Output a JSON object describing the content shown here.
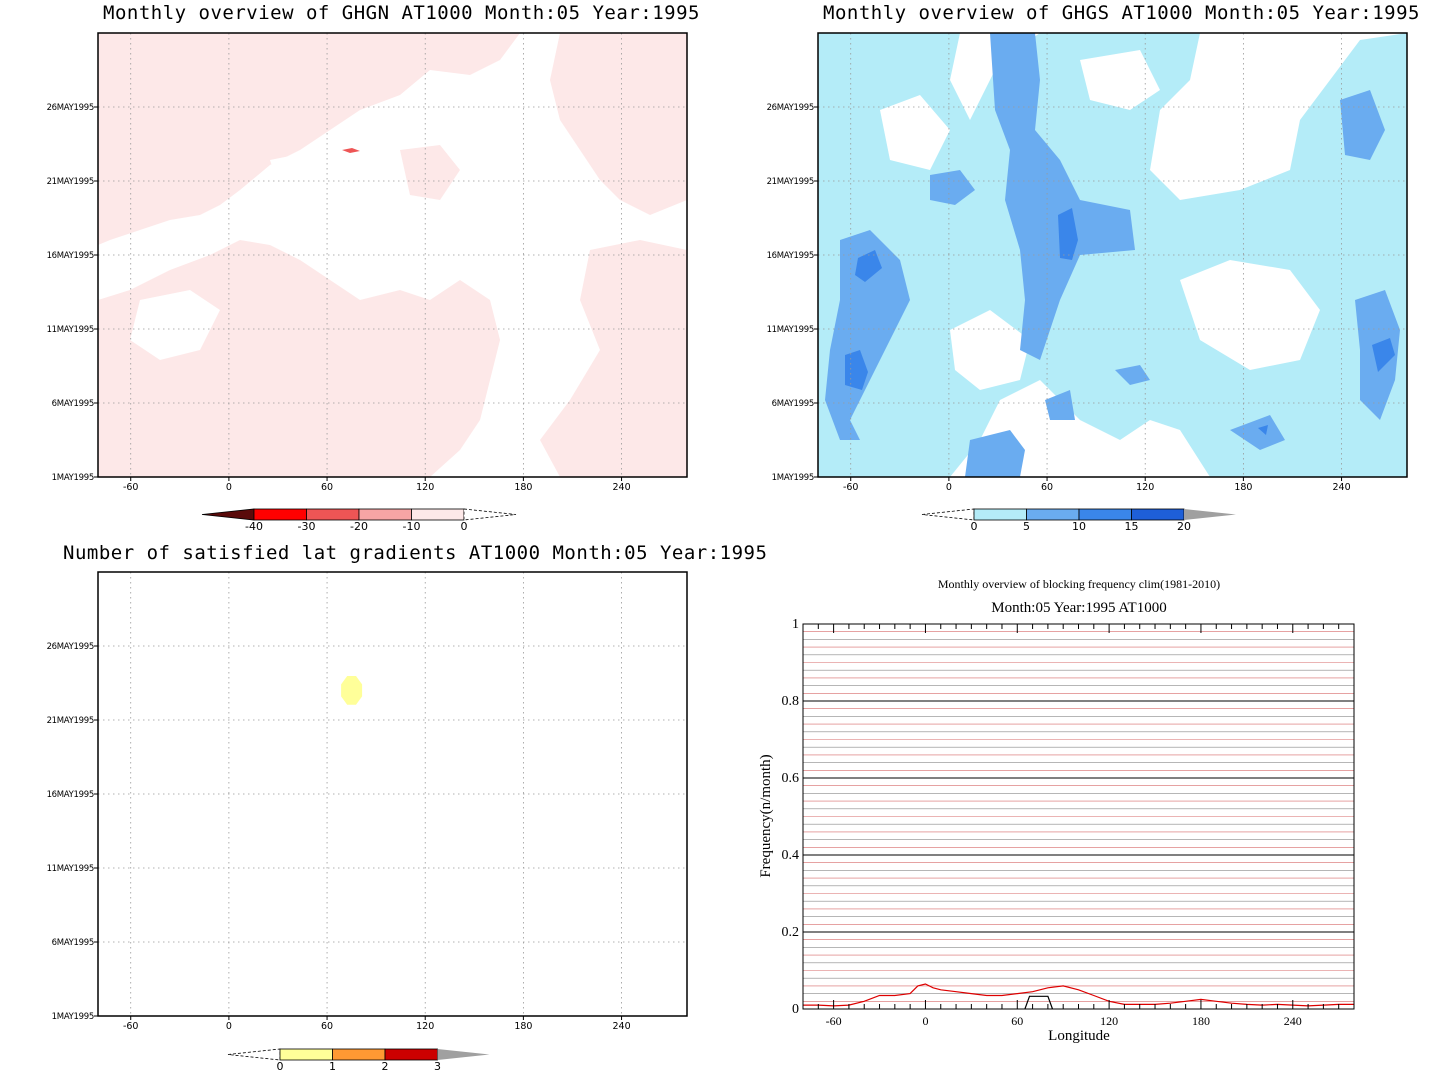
{
  "chart_data": [
    {
      "type": "heatmap",
      "title": "Monthly overview of GHGN AT1000 Month:05 Year:1995",
      "x_ticks": [
        "-60",
        "0",
        "60",
        "120",
        "180",
        "240"
      ],
      "x_tick_values": [
        -60,
        0,
        60,
        120,
        180,
        240
      ],
      "xlim": [
        -80,
        280
      ],
      "y_ticks": [
        "1MAY1995",
        "6MAY1995",
        "11MAY1995",
        "16MAY1995",
        "21MAY1995",
        "26MAY1995"
      ],
      "y_tick_values": [
        1,
        6,
        11,
        16,
        21,
        26
      ],
      "ylim": [
        1,
        31
      ],
      "grid": true,
      "legend": {
        "labels": [
          "-40",
          "-30",
          "-20",
          "-10",
          "0"
        ],
        "colors": [
          "#5a0a0a",
          "#ff0000",
          "#ee5555",
          "#f7a5a5",
          "#fde8e8",
          "#ffffff"
        ]
      },
      "fill_color": "#fde8e8"
    },
    {
      "type": "heatmap",
      "title": "Monthly overview of GHGS AT1000 Month:05 Year:1995",
      "x_ticks": [
        "-60",
        "0",
        "60",
        "120",
        "180",
        "240"
      ],
      "x_tick_values": [
        -60,
        0,
        60,
        120,
        180,
        240
      ],
      "xlim": [
        -80,
        280
      ],
      "y_ticks": [
        "1MAY1995",
        "6MAY1995",
        "11MAY1995",
        "16MAY1995",
        "21MAY1995",
        "26MAY1995"
      ],
      "y_tick_values": [
        1,
        6,
        11,
        16,
        21,
        26
      ],
      "ylim": [
        1,
        31
      ],
      "grid": true,
      "legend": {
        "labels": [
          "0",
          "5",
          "10",
          "15",
          "20"
        ],
        "colors": [
          "#ffffff",
          "#b4ecf8",
          "#6aacf0",
          "#3a86ea",
          "#1e5fd8",
          "#a0a0a0"
        ]
      },
      "fill_colors": [
        "#b4ecf8",
        "#6aacf0",
        "#3a86ea",
        "#1e5fd8"
      ]
    },
    {
      "type": "heatmap",
      "title": "Number of satisfied lat gradients AT1000 Month:05 Year:1995",
      "x_ticks": [
        "-60",
        "0",
        "60",
        "120",
        "180",
        "240"
      ],
      "x_tick_values": [
        -60,
        0,
        60,
        120,
        180,
        240
      ],
      "xlim": [
        -80,
        280
      ],
      "y_ticks": [
        "1MAY1995",
        "6MAY1995",
        "11MAY1995",
        "16MAY1995",
        "21MAY1995",
        "26MAY1995"
      ],
      "y_tick_values": [
        1,
        6,
        11,
        16,
        21,
        26
      ],
      "ylim": [
        1,
        31
      ],
      "grid": true,
      "legend": {
        "labels": [
          "0",
          "1",
          "2",
          "3"
        ],
        "colors": [
          "#ffffff",
          "#ffff99",
          "#ff9933",
          "#cc0000",
          "#a0a0a0"
        ]
      },
      "blob": {
        "lon": 75,
        "day": 23,
        "value": 1
      }
    },
    {
      "type": "line",
      "title": "Monthly overview of blocking frequency clim(1981-2010)",
      "subtitle": "Month:05 Year:1995  AT1000",
      "xlabel": "Longitude",
      "ylabel": "Frequency(n/month)",
      "xlim": [
        -80,
        280
      ],
      "ylim": [
        0,
        1
      ],
      "x_ticks": [
        "-60",
        "0",
        "60",
        "120",
        "180",
        "240"
      ],
      "x_tick_values": [
        -60,
        0,
        60,
        120,
        180,
        240
      ],
      "y_ticks": [
        "0",
        "0.2",
        "0.4",
        "0.6",
        "0.8",
        "1"
      ],
      "y_tick_values": [
        0,
        0.2,
        0.4,
        0.6,
        0.8,
        1
      ],
      "grid": true,
      "series": [
        {
          "color": "#dd0000",
          "x": [
            -80,
            -70,
            -60,
            -50,
            -40,
            -30,
            -20,
            -10,
            -5,
            0,
            5,
            10,
            20,
            30,
            40,
            50,
            60,
            70,
            80,
            90,
            100,
            110,
            120,
            130,
            140,
            150,
            160,
            170,
            180,
            190,
            200,
            210,
            220,
            230,
            240,
            250,
            260,
            270,
            280
          ],
          "y": [
            0.01,
            0.01,
            0.008,
            0.01,
            0.02,
            0.035,
            0.035,
            0.04,
            0.06,
            0.065,
            0.055,
            0.05,
            0.045,
            0.04,
            0.035,
            0.035,
            0.04,
            0.045,
            0.055,
            0.06,
            0.05,
            0.035,
            0.02,
            0.012,
            0.012,
            0.012,
            0.015,
            0.02,
            0.025,
            0.02,
            0.015,
            0.012,
            0.01,
            0.012,
            0.01,
            0.008,
            0.01,
            0.012,
            0.012
          ]
        },
        {
          "color": "#000000",
          "x": [
            65,
            68,
            80,
            83
          ],
          "y": [
            0,
            0.033,
            0.033,
            0
          ]
        }
      ]
    }
  ]
}
